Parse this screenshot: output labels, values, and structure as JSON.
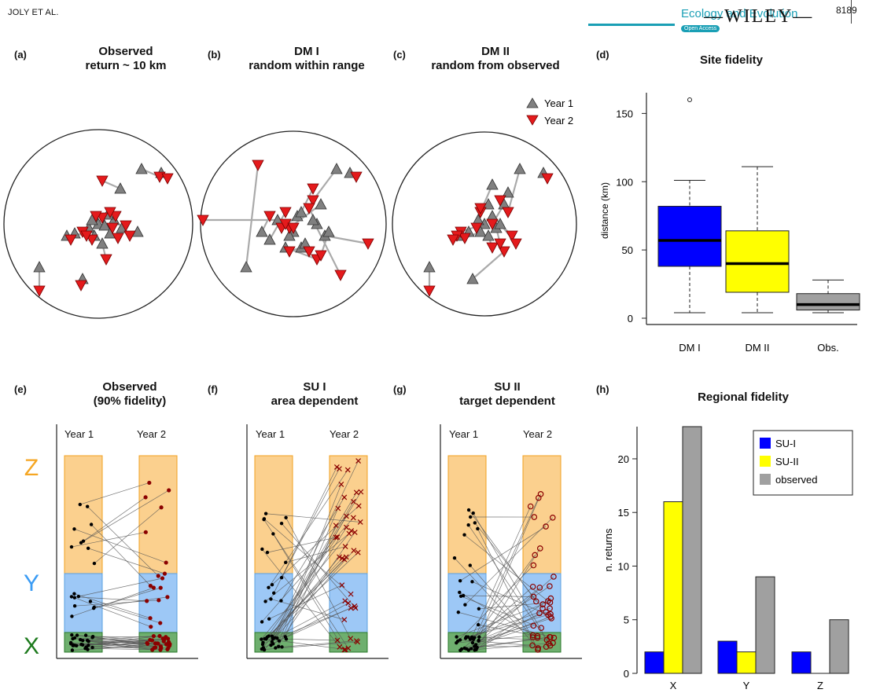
{
  "header": {
    "author": "JOLY ET AL.",
    "journal": "Ecology and Evolution",
    "open_access": "Open Access",
    "publisher": "WILEY",
    "page_number": "8189"
  },
  "panels": {
    "a": {
      "letter": "(a)",
      "title_line1": "Observed",
      "title_line2": "return ~ 10 km"
    },
    "b": {
      "letter": "(b)",
      "title_line1": "DM I",
      "title_line2": "random within range"
    },
    "c": {
      "letter": "(c)",
      "title_line1": "DM II",
      "title_line2": "random from observed"
    },
    "d": {
      "letter": "(d)",
      "title_line1": "Site fidelity"
    },
    "e": {
      "letter": "(e)",
      "title_line1": "Observed",
      "title_line2": "(90% fidelity)",
      "col1": "Year 1",
      "col2": "Year 2"
    },
    "f": {
      "letter": "(f)",
      "title_line1": "SU I",
      "title_line2": "area dependent",
      "col1": "Year 1",
      "col2": "Year 2"
    },
    "g": {
      "letter": "(g)",
      "title_line1": "SU II",
      "title_line2": "target dependent",
      "col1": "Year 1",
      "col2": "Year 2"
    },
    "h": {
      "letter": "(h)",
      "title_line1": "Regional fidelity"
    }
  },
  "map_legend": {
    "year1": "Year 1",
    "year2": "Year 2"
  },
  "zone_labels": {
    "z": "Z",
    "y": "Y",
    "x": "X"
  },
  "colors": {
    "year1_marker": "#808080",
    "year2_marker": "#e41a1c",
    "zone_z": "#fbd08e",
    "zone_y": "#9dc8f6",
    "zone_x": "#6eaf6e",
    "label_z": "#f5a623",
    "label_y": "#3a9bf4",
    "label_x": "#1d7a1d",
    "su1": "#0000ff",
    "su2": "#ffff00",
    "observed": "#a0a0a0",
    "point_year2": "#8b0000"
  },
  "chart_data": [
    {
      "id": "d",
      "type": "box",
      "title": "Site fidelity",
      "ylabel": "distance (km)",
      "ylim": [
        0,
        165
      ],
      "yticks": [
        0,
        50,
        100,
        150
      ],
      "categories": [
        "DM I",
        "DM II",
        "Obs."
      ],
      "boxes": [
        {
          "name": "DM I",
          "whisker_low": 4,
          "q1": 38,
          "median": 57,
          "q3": 82,
          "whisker_high": 101,
          "outliers": [
            160
          ],
          "color": "#0000ff"
        },
        {
          "name": "DM II",
          "whisker_low": 4,
          "q1": 19,
          "median": 40,
          "q3": 64,
          "whisker_high": 111,
          "outliers": [],
          "color": "#ffff00"
        },
        {
          "name": "Obs.",
          "whisker_low": 4,
          "q1": 6,
          "median": 10,
          "q3": 18,
          "whisker_high": 28,
          "outliers": [],
          "color": "#a0a0a0"
        }
      ]
    },
    {
      "id": "h",
      "type": "bar",
      "title": "Regional fidelity",
      "ylabel": "n. returns",
      "ylim": [
        0,
        23
      ],
      "yticks": [
        0,
        5,
        10,
        15,
        20
      ],
      "categories": [
        "X",
        "Y",
        "Z"
      ],
      "series": [
        {
          "name": "SU-I",
          "values": [
            2,
            3,
            2
          ]
        },
        {
          "name": "SU-II",
          "values": [
            16,
            2,
            0
          ]
        },
        {
          "name": "observed",
          "values": [
            23,
            9,
            5
          ]
        }
      ],
      "legend": "top-right"
    }
  ]
}
